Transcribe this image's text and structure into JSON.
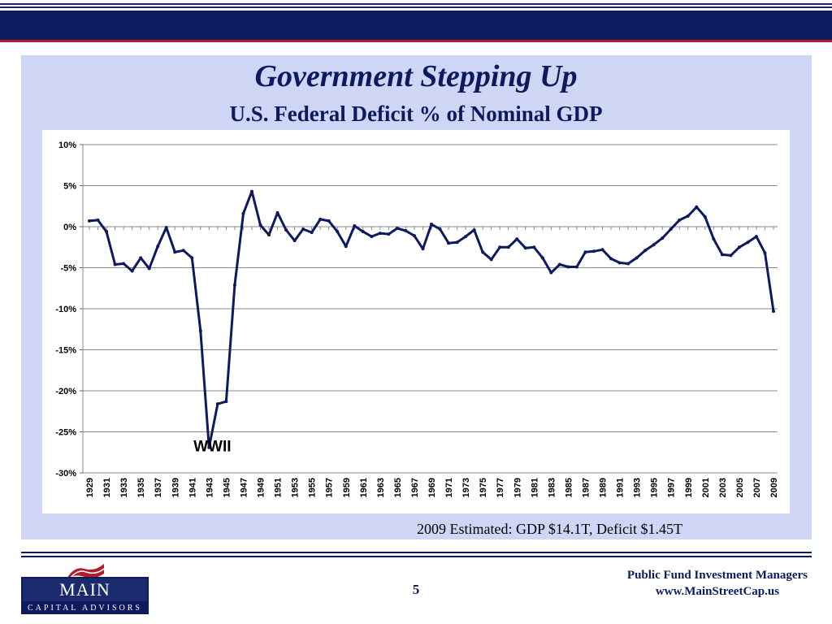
{
  "slide": {
    "title": "Government Stepping Up",
    "subtitle": "U.S. Federal Deficit % of Nominal GDP",
    "footnote": "2009 Estimated: GDP $14.1T,  Deficit $1.45T",
    "page_number": "5",
    "company_line1": "Public Fund Investment Managers",
    "company_line2": "www.MainStreetCap.us",
    "logo_main": "MAIN STREET",
    "logo_sub": "CAPITAL ADVISORS"
  },
  "colors": {
    "navy": "#0d1b5e",
    "panel": "#cfd6f5",
    "series": "#0d1b5e",
    "accent_red": "#b01e2e"
  },
  "chart_data": {
    "type": "line",
    "title": "",
    "xlabel": "",
    "ylabel": "",
    "ylim": [
      -0.3,
      0.1
    ],
    "y_ticks": [
      "10%",
      "5%",
      "0%",
      "-5%",
      "-10%",
      "-15%",
      "-20%",
      "-25%",
      "-30%"
    ],
    "x_tick_labels": [
      "1929",
      "1931",
      "1933",
      "1935",
      "1937",
      "1939",
      "1941",
      "1943",
      "1945",
      "1947",
      "1949",
      "1951",
      "1953",
      "1955",
      "1957",
      "1959",
      "1961",
      "1963",
      "1965",
      "1967",
      "1969",
      "1971",
      "1973",
      "1975",
      "1977",
      "1979",
      "1981",
      "1983",
      "1985",
      "1987",
      "1989",
      "1991",
      "1993",
      "1995",
      "1997",
      "1999",
      "2001",
      "2003",
      "2005",
      "2007",
      "2009"
    ],
    "grid": "horizontal",
    "annotation": "WWII",
    "series": [
      {
        "x": [
          1929,
          1930,
          1931,
          1932,
          1933,
          1934,
          1935,
          1936,
          1937,
          1938,
          1939,
          1940,
          1941,
          1942,
          1943,
          1944,
          1945,
          1946,
          1947,
          1948,
          1949,
          1950,
          1951,
          1952,
          1953,
          1954,
          1955,
          1956,
          1957,
          1958,
          1959,
          1960,
          1961,
          1962,
          1963,
          1964,
          1965,
          1966,
          1967,
          1968,
          1969,
          1970,
          1971,
          1972,
          1973,
          1974,
          1975,
          1976,
          1977,
          1978,
          1979,
          1980,
          1981,
          1982,
          1983,
          1984,
          1985,
          1986,
          1987,
          1988,
          1989,
          1990,
          1991,
          1992,
          1993,
          1994,
          1995,
          1996,
          1997,
          1998,
          1999,
          2000,
          2001,
          2002,
          2003,
          2004,
          2005,
          2006,
          2007,
          2008,
          2009
        ],
        "values": [
          0.007,
          0.008,
          -0.006,
          -0.046,
          -0.045,
          -0.054,
          -0.038,
          -0.051,
          -0.024,
          -0.001,
          -0.031,
          -0.029,
          -0.038,
          -0.127,
          -0.269,
          -0.216,
          -0.213,
          -0.071,
          0.016,
          0.043,
          0.002,
          -0.01,
          0.017,
          -0.004,
          -0.017,
          -0.003,
          -0.007,
          0.009,
          0.007,
          -0.006,
          -0.024,
          0.001,
          -0.006,
          -0.012,
          -0.008,
          -0.009,
          -0.002,
          -0.005,
          -0.011,
          -0.027,
          0.003,
          -0.003,
          -0.02,
          -0.019,
          -0.012,
          -0.004,
          -0.031,
          -0.04,
          -0.025,
          -0.025,
          -0.015,
          -0.026,
          -0.025,
          -0.038,
          -0.056,
          -0.046,
          -0.049,
          -0.049,
          -0.031,
          -0.03,
          -0.028,
          -0.039,
          -0.044,
          -0.045,
          -0.038,
          -0.029,
          -0.022,
          -0.014,
          -0.003,
          0.008,
          0.013,
          0.024,
          0.012,
          -0.015,
          -0.034,
          -0.035,
          -0.025,
          -0.019,
          -0.012,
          -0.032,
          -0.103
        ]
      }
    ]
  }
}
